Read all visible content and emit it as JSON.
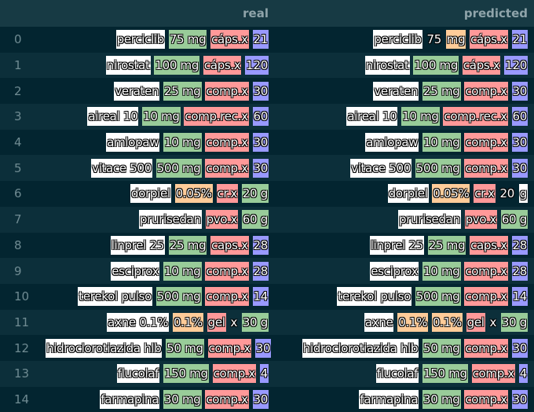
{
  "columns": {
    "index": "",
    "real": "real",
    "predicted": "predicted"
  },
  "colors": {
    "name": "#ffffff",
    "dose": "#99cc99",
    "form": "#ff9999",
    "qty": "#9999ff",
    "conc": "#ffcc99"
  },
  "rows": [
    {
      "index": "0",
      "real": [
        [
          "perciclib",
          "name"
        ],
        [
          "75 mg",
          "dose"
        ],
        [
          "cáps.x",
          "form"
        ],
        [
          "21",
          "qty"
        ]
      ],
      "predicted": [
        [
          "perciclib",
          "name"
        ],
        [
          "75",
          "none"
        ],
        [
          "mg",
          "conc"
        ],
        [
          "cáps.x",
          "form"
        ],
        [
          "21",
          "qty"
        ]
      ]
    },
    {
      "index": "1",
      "real": [
        [
          "nirostat",
          "name"
        ],
        [
          "100 mg",
          "dose"
        ],
        [
          "cáps.x",
          "form"
        ],
        [
          "120",
          "qty"
        ]
      ],
      "predicted": [
        [
          "nirostat",
          "name"
        ],
        [
          "100 mg",
          "dose"
        ],
        [
          "cáps.x",
          "form"
        ],
        [
          "120",
          "qty"
        ]
      ]
    },
    {
      "index": "2",
      "real": [
        [
          "veraten",
          "name"
        ],
        [
          "25 mg",
          "dose"
        ],
        [
          "comp.x",
          "form"
        ],
        [
          "30",
          "qty"
        ]
      ],
      "predicted": [
        [
          "veraten",
          "name"
        ],
        [
          "25 mg",
          "dose"
        ],
        [
          "comp.x",
          "form"
        ],
        [
          "30",
          "qty"
        ]
      ]
    },
    {
      "index": "3",
      "real": [
        [
          "aireal 10",
          "name"
        ],
        [
          "10 mg",
          "dose"
        ],
        [
          "comp.rec.x",
          "form"
        ],
        [
          "60",
          "qty"
        ]
      ],
      "predicted": [
        [
          "aireal 10",
          "name"
        ],
        [
          "10 mg",
          "dose"
        ],
        [
          "comp.rec.x",
          "form"
        ],
        [
          "60",
          "qty"
        ]
      ]
    },
    {
      "index": "4",
      "real": [
        [
          "amlopaw",
          "name"
        ],
        [
          "10 mg",
          "dose"
        ],
        [
          "comp.x",
          "form"
        ],
        [
          "30",
          "qty"
        ]
      ],
      "predicted": [
        [
          "amlopaw",
          "name"
        ],
        [
          "10 mg",
          "dose"
        ],
        [
          "comp.x",
          "form"
        ],
        [
          "30",
          "qty"
        ]
      ]
    },
    {
      "index": "5",
      "real": [
        [
          "vitace 500",
          "name"
        ],
        [
          "500 mg",
          "dose"
        ],
        [
          "comp.x",
          "form"
        ],
        [
          "30",
          "qty"
        ]
      ],
      "predicted": [
        [
          "vitace 500",
          "name"
        ],
        [
          "500 mg",
          "dose"
        ],
        [
          "comp.x",
          "form"
        ],
        [
          "30",
          "qty"
        ]
      ]
    },
    {
      "index": "6",
      "real": [
        [
          "dorpiel",
          "name"
        ],
        [
          "0.05%",
          "conc"
        ],
        [
          "cr.x",
          "form"
        ],
        [
          "20 g",
          "dose"
        ]
      ],
      "predicted": [
        [
          "dorpiel",
          "name"
        ],
        [
          "0.05%",
          "conc"
        ],
        [
          "cr.x",
          "form"
        ],
        [
          "20",
          "none"
        ],
        [
          "g",
          "name"
        ]
      ]
    },
    {
      "index": "7",
      "real": [
        [
          "prurisedan",
          "name"
        ],
        [
          "pvo.x",
          "form"
        ],
        [
          "60 g",
          "dose"
        ]
      ],
      "predicted": [
        [
          "prurisedan",
          "name"
        ],
        [
          "pvo.x",
          "form"
        ],
        [
          "60 g",
          "dose"
        ]
      ]
    },
    {
      "index": "8",
      "real": [
        [
          "linprel 25",
          "name"
        ],
        [
          "25 mg",
          "dose"
        ],
        [
          "caps.x",
          "form"
        ],
        [
          "28",
          "qty"
        ]
      ],
      "predicted": [
        [
          "linprel 25",
          "name"
        ],
        [
          "25 mg",
          "dose"
        ],
        [
          "caps.x",
          "form"
        ],
        [
          "28",
          "qty"
        ]
      ]
    },
    {
      "index": "9",
      "real": [
        [
          "esciprox",
          "name"
        ],
        [
          "10 mg",
          "dose"
        ],
        [
          "comp.x",
          "form"
        ],
        [
          "28",
          "qty"
        ]
      ],
      "predicted": [
        [
          "esciprox",
          "name"
        ],
        [
          "10 mg",
          "dose"
        ],
        [
          "comp.x",
          "form"
        ],
        [
          "28",
          "qty"
        ]
      ]
    },
    {
      "index": "10",
      "real": [
        [
          "terekol pulso",
          "name"
        ],
        [
          "500 mg",
          "dose"
        ],
        [
          "comp.x",
          "form"
        ],
        [
          "14",
          "qty"
        ]
      ],
      "predicted": [
        [
          "terekol pulso",
          "name"
        ],
        [
          "500 mg",
          "dose"
        ],
        [
          "comp.x",
          "form"
        ],
        [
          "14",
          "qty"
        ]
      ]
    },
    {
      "index": "11",
      "real": [
        [
          "axne 0.1%",
          "name"
        ],
        [
          "0.1%",
          "conc"
        ],
        [
          "gel",
          "form"
        ],
        [
          "x",
          "none"
        ],
        [
          "30 g",
          "dose"
        ]
      ],
      "predicted": [
        [
          "axne",
          "name"
        ],
        [
          "0.1%",
          "conc"
        ],
        [
          "0.1%",
          "conc"
        ],
        [
          "gel",
          "form"
        ],
        [
          "x",
          "none"
        ],
        [
          "30 g",
          "dose"
        ]
      ]
    },
    {
      "index": "12",
      "real": [
        [
          "hidroclorotiazida hlb",
          "name"
        ],
        [
          "50 mg",
          "dose"
        ],
        [
          "comp.x",
          "form"
        ],
        [
          "30",
          "qty"
        ]
      ],
      "predicted": [
        [
          "hidroclorotiazida hlb",
          "name"
        ],
        [
          "50 mg",
          "dose"
        ],
        [
          "comp.x",
          "form"
        ],
        [
          "30",
          "qty"
        ]
      ]
    },
    {
      "index": "13",
      "real": [
        [
          "flucolaf",
          "name"
        ],
        [
          "150 mg",
          "dose"
        ],
        [
          "comp.x",
          "form"
        ],
        [
          "4",
          "qty"
        ]
      ],
      "predicted": [
        [
          "flucolaf",
          "name"
        ],
        [
          "150 mg",
          "dose"
        ],
        [
          "comp.x",
          "form"
        ],
        [
          "4",
          "qty"
        ]
      ]
    },
    {
      "index": "14",
      "real": [
        [
          "farmapina",
          "name"
        ],
        [
          "30 mg",
          "dose"
        ],
        [
          "comp.x",
          "form"
        ],
        [
          "30",
          "qty"
        ]
      ],
      "predicted": [
        [
          "farmapina",
          "name"
        ],
        [
          "30 mg",
          "dose"
        ],
        [
          "comp.x",
          "form"
        ],
        [
          "30",
          "qty"
        ]
      ]
    }
  ]
}
